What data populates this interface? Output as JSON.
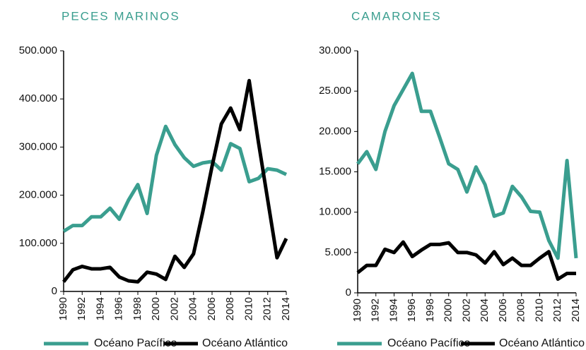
{
  "chart_data": [
    {
      "type": "line",
      "title": "PECES MARINOS",
      "x": [
        1990,
        1991,
        1992,
        1993,
        1994,
        1995,
        1996,
        1997,
        1998,
        1999,
        2000,
        2001,
        2002,
        2003,
        2004,
        2005,
        2006,
        2007,
        2008,
        2009,
        2010,
        2011,
        2012,
        2013,
        2014
      ],
      "xlim": [
        1990,
        2014
      ],
      "xticks": [
        1990,
        1992,
        1994,
        1996,
        1998,
        2000,
        2002,
        2004,
        2006,
        2008,
        2010,
        2012,
        2014
      ],
      "ylim": [
        0,
        500000
      ],
      "yticks": [
        0,
        {
          "value": 100000,
          "label": "100.000"
        },
        {
          "value": 200000,
          "label": "200.000"
        },
        {
          "value": 300000,
          "label": "300.000"
        },
        {
          "value": 400000,
          "label": "400.000"
        },
        {
          "value": 500000,
          "label": "500.000"
        }
      ],
      "legend": "bottom",
      "series": [
        {
          "name": "Océano Pacífico",
          "color": "#3a9e8f",
          "values": [
            125000,
            137000,
            137000,
            155000,
            155000,
            173000,
            150000,
            190000,
            222000,
            162000,
            283000,
            343000,
            305000,
            278000,
            260000,
            267000,
            270000,
            252000,
            307000,
            297000,
            228000,
            235000,
            255000,
            252000,
            243000
          ]
        },
        {
          "name": "Océano Atlántico",
          "color": "#000000",
          "values": [
            20000,
            45000,
            52000,
            47000,
            47000,
            50000,
            30000,
            22000,
            20000,
            40000,
            36000,
            25000,
            73000,
            50000,
            78000,
            165000,
            260000,
            348000,
            381000,
            336000,
            438000,
            310000,
            190000,
            70000,
            110000
          ]
        }
      ]
    },
    {
      "type": "line",
      "title": "CAMARONES",
      "x": [
        1990,
        1991,
        1992,
        1993,
        1994,
        1995,
        1996,
        1997,
        1998,
        1999,
        2000,
        2001,
        2002,
        2003,
        2004,
        2005,
        2006,
        2007,
        2008,
        2009,
        2010,
        2011,
        2012,
        2013,
        2014
      ],
      "xlim": [
        1990,
        2014
      ],
      "xticks": [
        1990,
        1992,
        1994,
        1996,
        1998,
        2000,
        2002,
        2004,
        2006,
        2008,
        2010,
        2012,
        2014
      ],
      "ylim": [
        0,
        30000
      ],
      "yticks": [
        0,
        {
          "value": 5000,
          "label": "5.000"
        },
        {
          "value": 10000,
          "label": "10.000"
        },
        {
          "value": 15000,
          "label": "15.000"
        },
        {
          "value": 20000,
          "label": "20.000"
        },
        {
          "value": 25000,
          "label": "25.000"
        },
        {
          "value": 30000,
          "label": "30.000"
        }
      ],
      "legend": "bottom",
      "series": [
        {
          "name": "Océano Pacífico",
          "color": "#3a9e8f",
          "values": [
            16000,
            17500,
            15300,
            20000,
            23200,
            25200,
            27200,
            22500,
            22500,
            19300,
            16000,
            15300,
            12500,
            15600,
            13400,
            9500,
            9900,
            13200,
            11900,
            10100,
            10000,
            6500,
            4300,
            16400,
            4300
          ]
        },
        {
          "name": "Océano Atlántico",
          "color": "#000000",
          "values": [
            2500,
            3400,
            3400,
            5400,
            5000,
            6300,
            4500,
            5300,
            6000,
            6000,
            6200,
            5000,
            5000,
            4700,
            3700,
            5100,
            3500,
            4300,
            3400,
            3400,
            4300,
            5100,
            1700,
            2400,
            2400
          ]
        }
      ]
    }
  ]
}
